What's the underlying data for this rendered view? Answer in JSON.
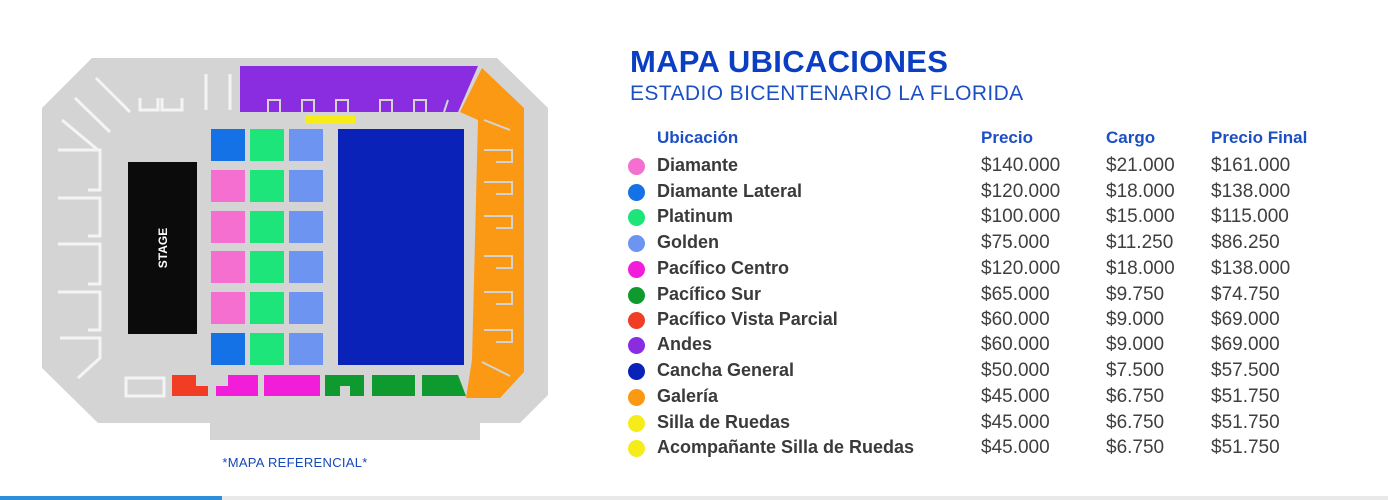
{
  "title": "MAPA UBICACIONES",
  "subtitle": "ESTADIO BICENTENARIO LA FLORIDA",
  "map": {
    "stage_label": "STAGE",
    "note": "*MAPA REFERENCIAL*"
  },
  "table": {
    "headers": {
      "ubicacion": "Ubicación",
      "precio": "Precio",
      "cargo": "Cargo",
      "final": "Precio Final"
    },
    "rows": [
      {
        "name": "Diamante",
        "color": "#f46fd0",
        "precio": "$140.000",
        "cargo": "$21.000",
        "final": "$161.000"
      },
      {
        "name": "Diamante Lateral",
        "color": "#1572e6",
        "precio": "$120.000",
        "cargo": "$18.000",
        "final": "$138.000"
      },
      {
        "name": "Platinum",
        "color": "#1ee57a",
        "precio": "$100.000",
        "cargo": "$15.000",
        "final": "$115.000"
      },
      {
        "name": "Golden",
        "color": "#6d94f0",
        "precio": "$75.000",
        "cargo": "$11.250",
        "final": "$86.250"
      },
      {
        "name": "Pacífico Centro",
        "color": "#f21dd9",
        "precio": "$120.000",
        "cargo": "$18.000",
        "final": "$138.000"
      },
      {
        "name": "Pacífico Sur",
        "color": "#0f9a30",
        "precio": "$65.000",
        "cargo": "$9.750",
        "final": "$74.750"
      },
      {
        "name": "Pacífico Vista Parcial",
        "color": "#f03d24",
        "precio": "$60.000",
        "cargo": "$9.000",
        "final": "$69.000"
      },
      {
        "name": "Andes",
        "color": "#8a2de0",
        "precio": "$60.000",
        "cargo": "$9.000",
        "final": "$69.000"
      },
      {
        "name": "Cancha General",
        "color": "#0a22b8",
        "precio": "$50.000",
        "cargo": "$7.500",
        "final": "$57.500"
      },
      {
        "name": "Galería",
        "color": "#fb9814",
        "precio": "$45.000",
        "cargo": "$6.750",
        "final": "$51.750"
      },
      {
        "name": "Silla de Ruedas",
        "color": "#f5ec1a",
        "precio": "$45.000",
        "cargo": "$6.750",
        "final": "$51.750"
      },
      {
        "name": "Acompañante Silla de Ruedas",
        "color": "#f5ec1a",
        "precio": "$45.000",
        "cargo": "$6.750",
        "final": "$51.750"
      }
    ]
  }
}
